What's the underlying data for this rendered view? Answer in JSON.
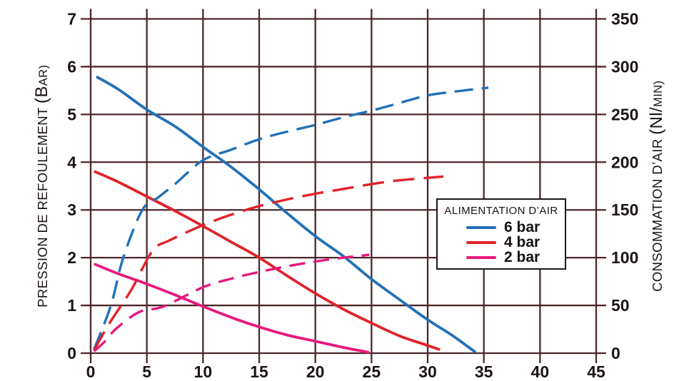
{
  "figure": {
    "background": "#ffffff",
    "text_color": "#1c1416"
  },
  "chart_data": {
    "type": "line",
    "title": "",
    "grid": {
      "on": true,
      "color": "#4c272b"
    },
    "x_axis": {
      "label": "",
      "min": 0,
      "max": 45,
      "ticks": [
        0,
        5,
        10,
        15,
        20,
        25,
        30,
        35,
        40,
        45
      ]
    },
    "y_axis_left": {
      "label": "PRESSION DE REFOULEMENT",
      "unit_big": "(B",
      "unit_small": "AR)",
      "min": 0,
      "max": 7,
      "ticks": [
        0,
        1,
        2,
        3,
        4,
        5,
        6,
        7
      ]
    },
    "y_axis_right": {
      "label": "CONSOMMATION D’AIR",
      "unit_big": "(Nl/",
      "unit_small": "MIN)",
      "min": 0,
      "max": 350,
      "ticks": [
        0,
        50,
        100,
        150,
        200,
        250,
        300,
        350
      ]
    },
    "legend": {
      "title": "ALIMENTATION D’AIR",
      "position": "right-middle",
      "entries": [
        {
          "label": "6 bar",
          "color": "#2271b6"
        },
        {
          "label": "4 bar",
          "color": "#e0232a"
        },
        {
          "label": "2 bar",
          "color": "#e7197d"
        }
      ]
    },
    "series": [
      {
        "name": "pression-refoulement-6bar",
        "legend_group": "6 bar",
        "color": "#2271b6",
        "style": "solid",
        "axis": "left",
        "points": [
          [
            0.6,
            5.78
          ],
          [
            2.5,
            5.52
          ],
          [
            5,
            5.1
          ],
          [
            7.5,
            4.75
          ],
          [
            10,
            4.32
          ],
          [
            12.5,
            3.9
          ],
          [
            15,
            3.43
          ],
          [
            17.5,
            2.93
          ],
          [
            20,
            2.45
          ],
          [
            22.5,
            2.03
          ],
          [
            25,
            1.55
          ],
          [
            27.5,
            1.12
          ],
          [
            30,
            0.7
          ],
          [
            32.2,
            0.37
          ],
          [
            34.2,
            0.03
          ]
        ]
      },
      {
        "name": "pression-refoulement-4bar",
        "legend_group": "4 bar",
        "color": "#e0232a",
        "style": "solid",
        "axis": "left",
        "points": [
          [
            0.4,
            3.8
          ],
          [
            2.5,
            3.58
          ],
          [
            5,
            3.28
          ],
          [
            7.5,
            2.98
          ],
          [
            10,
            2.66
          ],
          [
            12.5,
            2.33
          ],
          [
            15,
            2.0
          ],
          [
            17.5,
            1.62
          ],
          [
            20,
            1.25
          ],
          [
            22.5,
            0.92
          ],
          [
            25,
            0.63
          ],
          [
            27.5,
            0.36
          ],
          [
            29.5,
            0.2
          ],
          [
            31,
            0.08
          ]
        ]
      },
      {
        "name": "pression-refoulement-2bar",
        "legend_group": "2 bar",
        "color": "#e7197d",
        "style": "solid",
        "axis": "left",
        "points": [
          [
            0.4,
            1.86
          ],
          [
            2.5,
            1.66
          ],
          [
            5,
            1.45
          ],
          [
            7.5,
            1.22
          ],
          [
            10,
            0.98
          ],
          [
            12.5,
            0.75
          ],
          [
            15,
            0.55
          ],
          [
            17.5,
            0.38
          ],
          [
            20,
            0.25
          ],
          [
            22.5,
            0.12
          ],
          [
            24.7,
            0.02
          ]
        ]
      },
      {
        "name": "consommation-air-6bar",
        "legend_group": "6 bar",
        "color": "#2271b6",
        "style": "dashed",
        "axis": "right",
        "points": [
          [
            0.3,
            4
          ],
          [
            1.8,
            50
          ],
          [
            2.9,
            100
          ],
          [
            4.6,
            150
          ],
          [
            6,
            163
          ],
          [
            7.5,
            177
          ],
          [
            10,
            202
          ],
          [
            12.5,
            213
          ],
          [
            15,
            224
          ],
          [
            17.5,
            232
          ],
          [
            20,
            239
          ],
          [
            22.5,
            247
          ],
          [
            25,
            254
          ],
          [
            27.5,
            262
          ],
          [
            30,
            270
          ],
          [
            32.5,
            274
          ],
          [
            35.4,
            278
          ]
        ]
      },
      {
        "name": "consommation-air-4bar",
        "legend_group": "4 bar",
        "color": "#e0232a",
        "style": "dashed",
        "axis": "right",
        "points": [
          [
            0.3,
            3
          ],
          [
            1.65,
            31
          ],
          [
            3.6,
            66
          ],
          [
            5.5,
            107
          ],
          [
            7,
            118
          ],
          [
            10,
            134
          ],
          [
            12.5,
            145
          ],
          [
            15,
            154
          ],
          [
            17.5,
            161
          ],
          [
            20,
            167
          ],
          [
            22.5,
            172
          ],
          [
            25,
            177
          ],
          [
            27.5,
            181
          ],
          [
            31.4,
            185
          ]
        ]
      },
      {
        "name": "consommation-air-2bar",
        "legend_group": "2 bar",
        "color": "#e7197d",
        "style": "dashed",
        "axis": "right",
        "points": [
          [
            0.3,
            2
          ],
          [
            1.15,
            11
          ],
          [
            2.3,
            26
          ],
          [
            4.3,
            43
          ],
          [
            6.5,
            49
          ],
          [
            10,
            69
          ],
          [
            12.5,
            78
          ],
          [
            15,
            85
          ],
          [
            17.5,
            91
          ],
          [
            20,
            96
          ],
          [
            22.5,
            100
          ],
          [
            24.8,
            103
          ]
        ]
      }
    ]
  }
}
